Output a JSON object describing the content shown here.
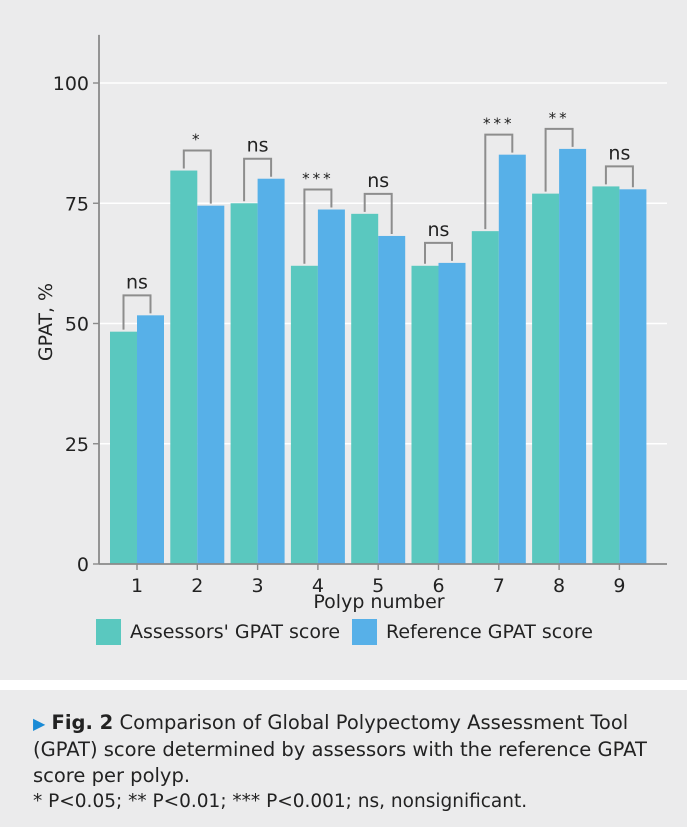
{
  "chart_data": {
    "type": "bar",
    "ylabel": "GPAT, %",
    "xlabel": "Polyp number",
    "ylim": [
      0,
      110
    ],
    "yticks": [
      0,
      25,
      50,
      75,
      100
    ],
    "grid": "horizontal",
    "legend_position": "bottom",
    "categories": [
      "1",
      "2",
      "3",
      "4",
      "5",
      "6",
      "7",
      "8",
      "9"
    ],
    "series": [
      {
        "name": "Assessors' GPAT score",
        "color": "#5ac8bf",
        "values": [
          48.3,
          81.8,
          75.0,
          62.0,
          72.8,
          62.0,
          69.2,
          77.0,
          78.5
        ]
      },
      {
        "name": "Reference GPAT score",
        "color": "#57b0e8",
        "values": [
          51.7,
          74.5,
          80.1,
          73.7,
          68.2,
          62.6,
          85.1,
          86.3,
          77.9
        ]
      }
    ],
    "significance": [
      "ns",
      "*",
      "ns",
      "***",
      "ns",
      "ns",
      "***",
      "**",
      "ns"
    ]
  },
  "caption": {
    "fig_label": "Fig. 2",
    "text": " Comparison of Global Polypectomy Assessment Tool (GPAT) score determined by assessors with the reference GPAT score per polyp.",
    "footnote": "* P<0.05; ** P<0.01; *** P<0.001; ns, nonsignificant."
  }
}
